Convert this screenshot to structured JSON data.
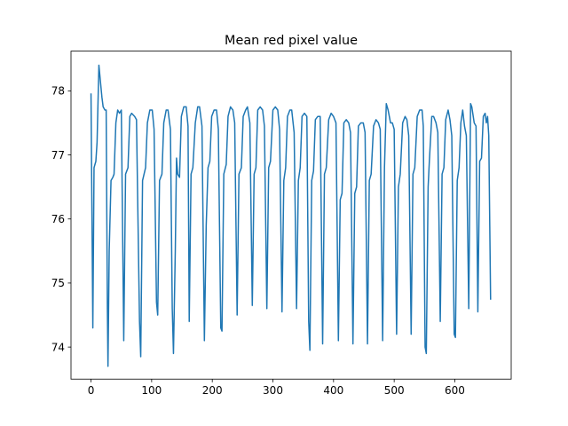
{
  "chart_data": {
    "type": "line",
    "title": "Mean red pixel value",
    "xlabel": "",
    "ylabel": "",
    "xlim": [
      -33,
      693
    ],
    "ylim": [
      73.5,
      78.62
    ],
    "xticks": [
      0,
      100,
      200,
      300,
      400,
      500,
      600
    ],
    "yticks": [
      74,
      75,
      76,
      77,
      78
    ],
    "grid": false,
    "legend": "none",
    "series": [
      {
        "name": "",
        "color": "#1f77b4",
        "points": [
          [
            0,
            77.95
          ],
          [
            3,
            74.3
          ],
          [
            5,
            76.8
          ],
          [
            8,
            76.9
          ],
          [
            10,
            77.2
          ],
          [
            13,
            78.4
          ],
          [
            15,
            78.2
          ],
          [
            18,
            77.9
          ],
          [
            20,
            77.75
          ],
          [
            23,
            77.7
          ],
          [
            25,
            77.7
          ],
          [
            27,
            74.6
          ],
          [
            28,
            73.7
          ],
          [
            30,
            75.5
          ],
          [
            33,
            76.6
          ],
          [
            36,
            76.65
          ],
          [
            38,
            76.7
          ],
          [
            41,
            77.5
          ],
          [
            44,
            77.7
          ],
          [
            47,
            77.65
          ],
          [
            50,
            77.7
          ],
          [
            54,
            74.1
          ],
          [
            57,
            76.7
          ],
          [
            61,
            76.8
          ],
          [
            64,
            77.6
          ],
          [
            67,
            77.65
          ],
          [
            72,
            77.6
          ],
          [
            75,
            77.55
          ],
          [
            80,
            74.4
          ],
          [
            82,
            73.85
          ],
          [
            85,
            76.6
          ],
          [
            90,
            76.8
          ],
          [
            93,
            77.5
          ],
          [
            97,
            77.7
          ],
          [
            101,
            77.7
          ],
          [
            104,
            77.4
          ],
          [
            108,
            74.7
          ],
          [
            110,
            74.5
          ],
          [
            113,
            76.6
          ],
          [
            117,
            76.7
          ],
          [
            120,
            77.5
          ],
          [
            124,
            77.7
          ],
          [
            127,
            77.7
          ],
          [
            131,
            77.4
          ],
          [
            134,
            74.6
          ],
          [
            136,
            73.9
          ],
          [
            139,
            75.5
          ],
          [
            141,
            76.95
          ],
          [
            143,
            76.7
          ],
          [
            146,
            76.65
          ],
          [
            149,
            77.6
          ],
          [
            153,
            77.75
          ],
          [
            157,
            77.75
          ],
          [
            160,
            77.45
          ],
          [
            162,
            74.4
          ],
          [
            165,
            76.7
          ],
          [
            168,
            76.8
          ],
          [
            172,
            77.5
          ],
          [
            176,
            77.75
          ],
          [
            179,
            77.75
          ],
          [
            183,
            77.45
          ],
          [
            187,
            74.1
          ],
          [
            190,
            75.9
          ],
          [
            193,
            76.8
          ],
          [
            196,
            76.9
          ],
          [
            199,
            77.6
          ],
          [
            203,
            77.7
          ],
          [
            207,
            77.7
          ],
          [
            210,
            77.4
          ],
          [
            214,
            74.3
          ],
          [
            216,
            74.25
          ],
          [
            219,
            76.7
          ],
          [
            223,
            76.85
          ],
          [
            226,
            77.6
          ],
          [
            230,
            77.75
          ],
          [
            234,
            77.7
          ],
          [
            237,
            77.5
          ],
          [
            241,
            74.5
          ],
          [
            244,
            76.7
          ],
          [
            248,
            76.8
          ],
          [
            251,
            77.6
          ],
          [
            255,
            77.7
          ],
          [
            258,
            77.75
          ],
          [
            262,
            77.5
          ],
          [
            266,
            74.65
          ],
          [
            269,
            76.7
          ],
          [
            272,
            76.8
          ],
          [
            275,
            77.7
          ],
          [
            279,
            77.75
          ],
          [
            283,
            77.7
          ],
          [
            286,
            77.45
          ],
          [
            290,
            74.6
          ],
          [
            293,
            76.8
          ],
          [
            296,
            76.9
          ],
          [
            300,
            77.7
          ],
          [
            304,
            77.75
          ],
          [
            308,
            77.7
          ],
          [
            311,
            77.4
          ],
          [
            315,
            74.55
          ],
          [
            318,
            76.6
          ],
          [
            321,
            76.8
          ],
          [
            324,
            77.6
          ],
          [
            328,
            77.7
          ],
          [
            331,
            77.7
          ],
          [
            335,
            77.35
          ],
          [
            339,
            74.6
          ],
          [
            342,
            76.6
          ],
          [
            345,
            76.8
          ],
          [
            348,
            77.6
          ],
          [
            352,
            77.65
          ],
          [
            356,
            77.6
          ],
          [
            359,
            74.4
          ],
          [
            361,
            73.95
          ],
          [
            364,
            76.6
          ],
          [
            367,
            76.75
          ],
          [
            370,
            77.55
          ],
          [
            374,
            77.6
          ],
          [
            378,
            77.6
          ],
          [
            382,
            74.05
          ],
          [
            385,
            76.7
          ],
          [
            388,
            76.8
          ],
          [
            392,
            77.55
          ],
          [
            396,
            77.65
          ],
          [
            400,
            77.6
          ],
          [
            404,
            77.5
          ],
          [
            408,
            74.1
          ],
          [
            411,
            76.3
          ],
          [
            414,
            76.4
          ],
          [
            417,
            77.5
          ],
          [
            421,
            77.55
          ],
          [
            425,
            77.5
          ],
          [
            428,
            77.35
          ],
          [
            432,
            74.05
          ],
          [
            435,
            76.4
          ],
          [
            438,
            76.5
          ],
          [
            441,
            77.45
          ],
          [
            445,
            77.5
          ],
          [
            449,
            77.5
          ],
          [
            452,
            77.35
          ],
          [
            456,
            74.05
          ],
          [
            459,
            76.6
          ],
          [
            462,
            76.7
          ],
          [
            466,
            77.45
          ],
          [
            470,
            77.55
          ],
          [
            474,
            77.5
          ],
          [
            477,
            77.4
          ],
          [
            481,
            74.1
          ],
          [
            484,
            76.8
          ],
          [
            487,
            77.8
          ],
          [
            490,
            77.7
          ],
          [
            494,
            77.5
          ],
          [
            497,
            77.5
          ],
          [
            500,
            77.4
          ],
          [
            504,
            74.2
          ],
          [
            507,
            76.5
          ],
          [
            510,
            76.7
          ],
          [
            514,
            77.5
          ],
          [
            518,
            77.6
          ],
          [
            521,
            77.55
          ],
          [
            524,
            77.3
          ],
          [
            528,
            74.2
          ],
          [
            531,
            76.7
          ],
          [
            534,
            76.8
          ],
          [
            538,
            77.6
          ],
          [
            542,
            77.7
          ],
          [
            546,
            77.7
          ],
          [
            548,
            77.45
          ],
          [
            551,
            74.0
          ],
          [
            553,
            73.9
          ],
          [
            556,
            76.5
          ],
          [
            558,
            76.9
          ],
          [
            562,
            77.6
          ],
          [
            565,
            77.6
          ],
          [
            569,
            77.5
          ],
          [
            572,
            77.35
          ],
          [
            576,
            74.4
          ],
          [
            579,
            76.7
          ],
          [
            582,
            76.8
          ],
          [
            585,
            77.55
          ],
          [
            589,
            77.7
          ],
          [
            592,
            77.55
          ],
          [
            595,
            77.3
          ],
          [
            599,
            74.2
          ],
          [
            601,
            74.15
          ],
          [
            604,
            76.6
          ],
          [
            607,
            76.8
          ],
          [
            610,
            77.5
          ],
          [
            613,
            77.7
          ],
          [
            616,
            77.45
          ],
          [
            619,
            77.3
          ],
          [
            623,
            74.6
          ],
          [
            626,
            77.8
          ],
          [
            628,
            77.75
          ],
          [
            632,
            77.5
          ],
          [
            635,
            77.45
          ],
          [
            638,
            74.55
          ],
          [
            641,
            76.9
          ],
          [
            644,
            76.95
          ],
          [
            647,
            77.6
          ],
          [
            650,
            77.65
          ],
          [
            652,
            77.5
          ],
          [
            654,
            77.6
          ],
          [
            656,
            77.3
          ],
          [
            659,
            74.75
          ]
        ]
      }
    ]
  }
}
